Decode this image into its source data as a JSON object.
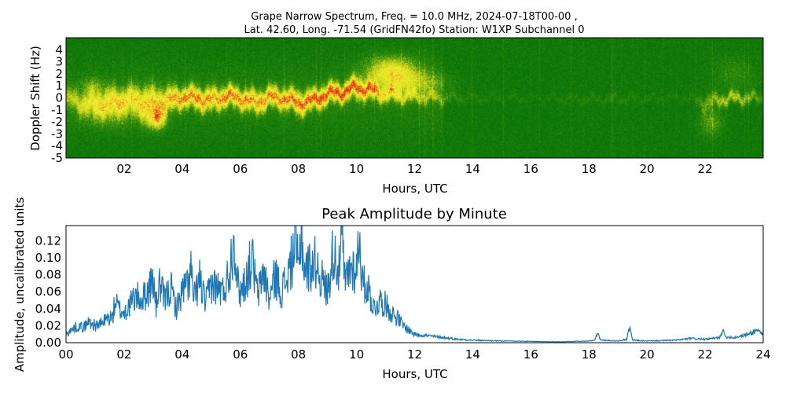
{
  "chart_data": [
    {
      "type": "heatmap",
      "title_line1": "Grape Narrow Spectrum, Freq. = 10.0 MHz, 2024-07-18T00-00 ,",
      "title_line2": "Lat.  42.60, Long. -71.54 (GridFN42fo) Station: W1XP Subchannel 0",
      "xlabel": "Hours, UTC",
      "ylabel": "Doppler Shift (Hz)",
      "xlim": [
        0,
        24
      ],
      "ylim": [
        -5,
        5
      ],
      "x_ticks": [
        "02",
        "04",
        "06",
        "08",
        "10",
        "12",
        "14",
        "16",
        "18",
        "20",
        "22"
      ],
      "x_tick_values": [
        2,
        4,
        6,
        8,
        10,
        12,
        14,
        16,
        18,
        20,
        22
      ],
      "y_ticks": [
        "4",
        "3",
        "2",
        "1",
        "0",
        "-1",
        "-2",
        "-3",
        "-4",
        "-5"
      ],
      "y_tick_values": [
        4,
        3,
        2,
        1,
        0,
        -1,
        -2,
        -3,
        -4,
        -5
      ],
      "colors": {
        "background": "#0f7a0a",
        "mid": "#7fbf1a",
        "high": "#f0f030",
        "peak": "#e02010"
      },
      "ridge": [
        {
          "x": 0.0,
          "y": 0.0,
          "w": 0.8,
          "i": 0.35
        },
        {
          "x": 0.5,
          "y": -0.4,
          "w": 0.9,
          "i": 0.45
        },
        {
          "x": 1.0,
          "y": -0.5,
          "w": 1.0,
          "i": 0.55
        },
        {
          "x": 1.5,
          "y": -0.3,
          "w": 1.1,
          "i": 0.6
        },
        {
          "x": 2.0,
          "y": -0.1,
          "w": 1.0,
          "i": 0.65
        },
        {
          "x": 2.5,
          "y": -0.2,
          "w": 1.2,
          "i": 0.7
        },
        {
          "x": 3.0,
          "y": -0.6,
          "w": 1.4,
          "i": 0.75
        },
        {
          "x": 3.5,
          "y": -0.2,
          "w": 1.0,
          "i": 0.8
        },
        {
          "x": 4.0,
          "y": 0.1,
          "w": 0.8,
          "i": 0.9
        },
        {
          "x": 4.5,
          "y": 0.0,
          "w": 0.9,
          "i": 0.9
        },
        {
          "x": 5.0,
          "y": -0.2,
          "w": 0.9,
          "i": 0.85
        },
        {
          "x": 5.5,
          "y": 0.2,
          "w": 0.8,
          "i": 0.9
        },
        {
          "x": 6.0,
          "y": 0.0,
          "w": 0.8,
          "i": 0.9
        },
        {
          "x": 6.5,
          "y": -0.4,
          "w": 0.9,
          "i": 0.85
        },
        {
          "x": 7.0,
          "y": 0.1,
          "w": 0.8,
          "i": 0.9
        },
        {
          "x": 7.5,
          "y": 0.0,
          "w": 0.8,
          "i": 0.9
        },
        {
          "x": 8.0,
          "y": -0.4,
          "w": 0.9,
          "i": 0.95
        },
        {
          "x": 8.5,
          "y": -0.2,
          "w": 0.8,
          "i": 0.95
        },
        {
          "x": 9.0,
          "y": 0.4,
          "w": 0.8,
          "i": 1.0
        },
        {
          "x": 9.5,
          "y": 0.5,
          "w": 0.7,
          "i": 1.0
        },
        {
          "x": 10.0,
          "y": 0.9,
          "w": 0.8,
          "i": 0.95
        },
        {
          "x": 10.5,
          "y": 0.6,
          "w": 0.7,
          "i": 0.8
        },
        {
          "x": 11.0,
          "y": 0.3,
          "w": 0.6,
          "i": 0.6
        },
        {
          "x": 12.0,
          "y": 0.1,
          "w": 0.5,
          "i": 0.35
        },
        {
          "x": 13.0,
          "y": 0.0,
          "w": 0.4,
          "i": 0.25
        },
        {
          "x": 14.0,
          "y": 0.0,
          "w": 0.3,
          "i": 0.12
        },
        {
          "x": 16.0,
          "y": 0.0,
          "w": 0.25,
          "i": 0.08
        },
        {
          "x": 18.0,
          "y": -0.1,
          "w": 0.35,
          "i": 0.15
        },
        {
          "x": 20.0,
          "y": 0.0,
          "w": 0.3,
          "i": 0.12
        },
        {
          "x": 21.5,
          "y": 0.0,
          "w": 0.3,
          "i": 0.1
        },
        {
          "x": 22.0,
          "y": -0.4,
          "w": 0.7,
          "i": 0.3
        },
        {
          "x": 22.5,
          "y": -0.1,
          "w": 0.5,
          "i": 0.45
        },
        {
          "x": 23.0,
          "y": 0.0,
          "w": 0.5,
          "i": 0.5
        },
        {
          "x": 23.5,
          "y": 0.0,
          "w": 0.5,
          "i": 0.4
        },
        {
          "x": 23.8,
          "y": 0.0,
          "w": 0.4,
          "i": 0.3
        }
      ],
      "blobs": [
        {
          "x": 11.2,
          "y": 2.2,
          "wx": 0.9,
          "wy": 1.3,
          "i": 0.7
        },
        {
          "x": 12.0,
          "y": 1.2,
          "wx": 1.2,
          "wy": 1.0,
          "i": 0.35
        },
        {
          "x": 3.1,
          "y": -1.8,
          "wx": 0.35,
          "wy": 0.8,
          "i": 0.6
        },
        {
          "x": 1.5,
          "y": -1.2,
          "wx": 1.0,
          "wy": 1.2,
          "i": 0.3
        },
        {
          "x": 22.2,
          "y": -2.0,
          "wx": 0.4,
          "wy": 1.2,
          "i": 0.35
        },
        {
          "x": 23.0,
          "y": 2.0,
          "wx": 0.8,
          "wy": 1.5,
          "i": 0.2
        },
        {
          "x": 0.9,
          "y": 1.0,
          "wx": 0.4,
          "wy": 0.7,
          "i": 0.3
        }
      ]
    },
    {
      "type": "line",
      "title": "Peak Amplitude by Minute",
      "xlabel": "Hours, UTC",
      "ylabel": "Amplitude, uncalibrated units",
      "xlim": [
        0,
        24
      ],
      "ylim": [
        0,
        0.138
      ],
      "x_ticks": [
        "00",
        "02",
        "04",
        "06",
        "08",
        "10",
        "12",
        "14",
        "16",
        "18",
        "20",
        "22",
        "24"
      ],
      "x_tick_values": [
        0,
        2,
        4,
        6,
        8,
        10,
        12,
        14,
        16,
        18,
        20,
        22,
        24
      ],
      "y_ticks": [
        "0.00",
        "0.02",
        "0.04",
        "0.06",
        "0.08",
        "0.10",
        "0.12"
      ],
      "y_tick_values": [
        0,
        0.02,
        0.04,
        0.06,
        0.08,
        0.1,
        0.12
      ],
      "line_color": "#1f77b4",
      "series": [
        {
          "x": [
            0,
            0.2,
            0.4,
            0.6,
            0.8,
            1.0,
            1.2,
            1.4,
            1.6,
            1.7,
            1.8,
            2.0,
            2.2,
            2.4,
            2.6,
            2.8,
            3.0,
            3.1,
            3.2,
            3.4,
            3.6,
            3.8,
            4.0,
            4.2,
            4.3,
            4.4,
            4.6,
            4.8,
            5.0,
            5.2,
            5.4,
            5.6,
            5.8,
            5.9,
            6.0,
            6.2,
            6.4,
            6.6,
            6.8,
            7.0,
            7.2,
            7.4,
            7.6,
            7.8,
            7.9,
            8.0,
            8.1,
            8.2,
            8.4,
            8.6,
            8.8,
            9.0,
            9.2,
            9.4,
            9.5,
            9.6,
            9.8,
            10.0,
            10.1,
            10.2,
            10.4,
            10.6,
            10.8,
            11.0,
            11.2,
            11.4,
            11.6,
            11.8,
            12.0,
            12.5,
            13.0,
            13.5,
            14.0,
            15.0,
            16.0,
            17.0,
            18.0,
            18.2,
            18.3,
            18.4,
            19.0,
            19.3,
            19.4,
            19.5,
            20.0,
            21.0,
            21.5,
            22.0,
            22.5,
            22.6,
            22.7,
            23.0,
            23.5,
            23.8,
            24.0
          ],
          "y": [
            0.01,
            0.015,
            0.02,
            0.018,
            0.025,
            0.02,
            0.022,
            0.028,
            0.03,
            0.05,
            0.04,
            0.035,
            0.045,
            0.055,
            0.05,
            0.06,
            0.075,
            0.04,
            0.07,
            0.05,
            0.065,
            0.04,
            0.06,
            0.07,
            0.085,
            0.05,
            0.075,
            0.045,
            0.07,
            0.065,
            0.06,
            0.08,
            0.128,
            0.07,
            0.06,
            0.075,
            0.1,
            0.055,
            0.085,
            0.05,
            0.08,
            0.06,
            0.075,
            0.1,
            0.125,
            0.08,
            0.14,
            0.085,
            0.09,
            0.095,
            0.075,
            0.06,
            0.11,
            0.085,
            0.125,
            0.07,
            0.09,
            0.085,
            0.13,
            0.07,
            0.065,
            0.04,
            0.05,
            0.045,
            0.035,
            0.03,
            0.02,
            0.015,
            0.01,
            0.008,
            0.006,
            0.004,
            0.003,
            0.002,
            0.0015,
            0.001,
            0.002,
            0.003,
            0.012,
            0.003,
            0.002,
            0.004,
            0.018,
            0.003,
            0.002,
            0.003,
            0.005,
            0.004,
            0.006,
            0.015,
            0.007,
            0.006,
            0.01,
            0.015,
            0.01
          ]
        }
      ]
    }
  ]
}
